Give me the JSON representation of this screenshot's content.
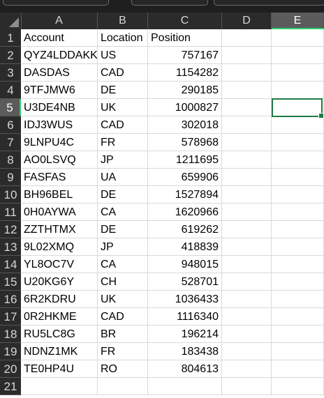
{
  "columns": [
    "A",
    "B",
    "C",
    "D",
    "E"
  ],
  "rows": [
    1,
    2,
    3,
    4,
    5,
    6,
    7,
    8,
    9,
    10,
    11,
    12,
    13,
    14,
    15,
    16,
    17,
    18,
    19,
    20,
    21
  ],
  "headers": {
    "account": "Account",
    "location": "Location",
    "position": "Position"
  },
  "data": [
    {
      "account": "QYZ4LDDAKK",
      "location": "US",
      "position": "757167"
    },
    {
      "account": "DASDAS",
      "location": "CAD",
      "position": "1154282"
    },
    {
      "account": "9TFJMW6",
      "location": "DE",
      "position": "290185"
    },
    {
      "account": "U3DE4NB",
      "location": "UK",
      "position": "1000827"
    },
    {
      "account": "IDJ3WUS",
      "location": "CAD",
      "position": "302018"
    },
    {
      "account": "9LNPU4C",
      "location": "FR",
      "position": "578968"
    },
    {
      "account": "AO0LSVQ",
      "location": "JP",
      "position": "1211695"
    },
    {
      "account": "FASFAS",
      "location": "UA",
      "position": "659906"
    },
    {
      "account": "BH96BEL",
      "location": "DE",
      "position": "1527894"
    },
    {
      "account": "0H0AYWA",
      "location": "CA",
      "position": "1620966"
    },
    {
      "account": "ZZTHTMX",
      "location": "DE",
      "position": "619262"
    },
    {
      "account": "9L02XMQ",
      "location": "JP",
      "position": "418839"
    },
    {
      "account": "YL8OC7V",
      "location": "CA",
      "position": "948015"
    },
    {
      "account": "U20KG6Y",
      "location": "CH",
      "position": "528701"
    },
    {
      "account": "6R2KDRU",
      "location": "UK",
      "position": "1036433"
    },
    {
      "account": "0R2HKME",
      "location": "CAD",
      "position": "1116340"
    },
    {
      "account": "RU5LC8G",
      "location": "BR",
      "position": "196214"
    },
    {
      "account": "NDNZ1MK",
      "location": "FR",
      "position": "183438"
    },
    {
      "account": "TE0HP4U",
      "location": "RO",
      "position": "804613"
    }
  ],
  "selection": {
    "column": "E",
    "row": 5
  },
  "colors": {
    "header_bg": "#2b2b2b",
    "selected_header": "#5b5b5b",
    "accent": "#1f7a46"
  }
}
